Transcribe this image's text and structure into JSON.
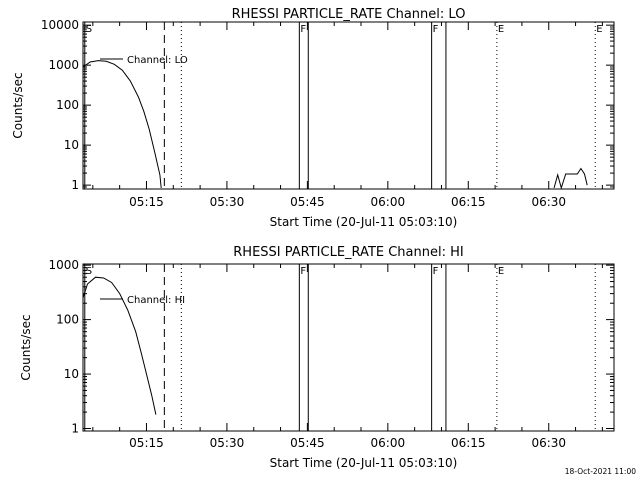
{
  "stamp": "18-Oct-2021 11:00",
  "chart_data": [
    {
      "type": "line",
      "title": "RHESSI PARTICLE_RATE Channel: LO",
      "xlabel": "Start Time (20-Jul-11 05:03:10)",
      "ylabel": "Counts/sec",
      "y_scale": "log",
      "xlim": [
        "05:03:10",
        "06:42:10"
      ],
      "ylim": [
        0.8,
        12000
      ],
      "x_ticks": [
        "05:15",
        "05:30",
        "05:45",
        "06:00",
        "06:15",
        "06:30"
      ],
      "y_ticks": [
        {
          "value": 1,
          "label": "1"
        },
        {
          "value": 10,
          "label": "10"
        },
        {
          "value": 100,
          "label": "100"
        },
        {
          "value": 1000,
          "label": "1000"
        },
        {
          "value": 10000,
          "label": "10000"
        }
      ],
      "legend": {
        "label": "Channel: LO",
        "placement": "top-left"
      },
      "series": [
        {
          "points": [
            [
              "05:03:10",
              900
            ],
            [
              "05:04:30",
              1200
            ],
            [
              "05:06:00",
              1300
            ],
            [
              "05:07:30",
              1250
            ],
            [
              "05:09:00",
              1050
            ],
            [
              "05:10:30",
              750
            ],
            [
              "05:12:00",
              400
            ],
            [
              "05:13:30",
              160
            ],
            [
              "05:14:30",
              70
            ],
            [
              "05:15:30",
              25
            ],
            [
              "05:16:30",
              7
            ],
            [
              "05:17:30",
              1.8
            ],
            [
              "05:17:45",
              0.85
            ]
          ]
        },
        {
          "points": [
            [
              "06:31:00",
              0.85
            ],
            [
              "06:31:40",
              1.8
            ],
            [
              "06:32:20",
              0.85
            ],
            [
              "06:33:10",
              1.9
            ],
            [
              "06:35:20",
              1.9
            ],
            [
              "06:36:00",
              2.6
            ],
            [
              "06:36:40",
              1.9
            ],
            [
              "06:37:10",
              1.0
            ]
          ]
        }
      ],
      "markers": [
        {
          "time": "05:03:30",
          "style": "solid",
          "label": "S"
        },
        {
          "time": "05:18:20",
          "style": "dashed",
          "label": ""
        },
        {
          "time": "05:21:30",
          "style": "dotted",
          "label": ""
        },
        {
          "time": "05:43:30",
          "style": "solid",
          "label": "F"
        },
        {
          "time": "05:45:10",
          "style": "solid",
          "label": ""
        },
        {
          "time": "06:08:10",
          "style": "solid",
          "label": "F"
        },
        {
          "time": "06:10:50",
          "style": "solid",
          "label": ""
        },
        {
          "time": "06:20:20",
          "style": "dotted",
          "label": "E"
        },
        {
          "time": "06:38:40",
          "style": "dotted",
          "label": "E"
        }
      ]
    },
    {
      "type": "line",
      "title": "RHESSI PARTICLE_RATE Channel: HI",
      "xlabel": "Start Time (20-Jul-11 05:03:10)",
      "ylabel": "Counts/sec",
      "y_scale": "log",
      "xlim": [
        "05:03:10",
        "06:42:10"
      ],
      "ylim": [
        0.9,
        1050
      ],
      "x_ticks": [
        "05:15",
        "05:30",
        "05:45",
        "06:00",
        "06:15",
        "06:30"
      ],
      "y_ticks": [
        {
          "value": 1,
          "label": "1"
        },
        {
          "value": 10,
          "label": "10"
        },
        {
          "value": 100,
          "label": "100"
        },
        {
          "value": 1000,
          "label": "1000"
        }
      ],
      "legend": {
        "label": "Channel: HI",
        "placement": "top-left"
      },
      "series": [
        {
          "points": [
            [
              "05:03:10",
              250
            ],
            [
              "05:04:00",
              450
            ],
            [
              "05:05:30",
              600
            ],
            [
              "05:07:00",
              580
            ],
            [
              "05:08:30",
              480
            ],
            [
              "05:10:00",
              300
            ],
            [
              "05:11:30",
              150
            ],
            [
              "05:13:00",
              60
            ],
            [
              "05:14:00",
              25
            ],
            [
              "05:15:00",
              10
            ],
            [
              "05:16:00",
              4
            ],
            [
              "05:16:45",
              1.8
            ]
          ]
        }
      ],
      "markers": [
        {
          "time": "05:03:30",
          "style": "solid",
          "label": "S"
        },
        {
          "time": "05:18:20",
          "style": "dashed",
          "label": ""
        },
        {
          "time": "05:21:30",
          "style": "dotted",
          "label": ""
        },
        {
          "time": "05:43:30",
          "style": "solid",
          "label": "F"
        },
        {
          "time": "05:45:10",
          "style": "solid",
          "label": ""
        },
        {
          "time": "06:08:10",
          "style": "solid",
          "label": "F"
        },
        {
          "time": "06:10:50",
          "style": "solid",
          "label": ""
        },
        {
          "time": "06:20:20",
          "style": "dotted",
          "label": "E"
        },
        {
          "time": "06:38:40",
          "style": "dotted",
          "label": ""
        }
      ]
    }
  ]
}
